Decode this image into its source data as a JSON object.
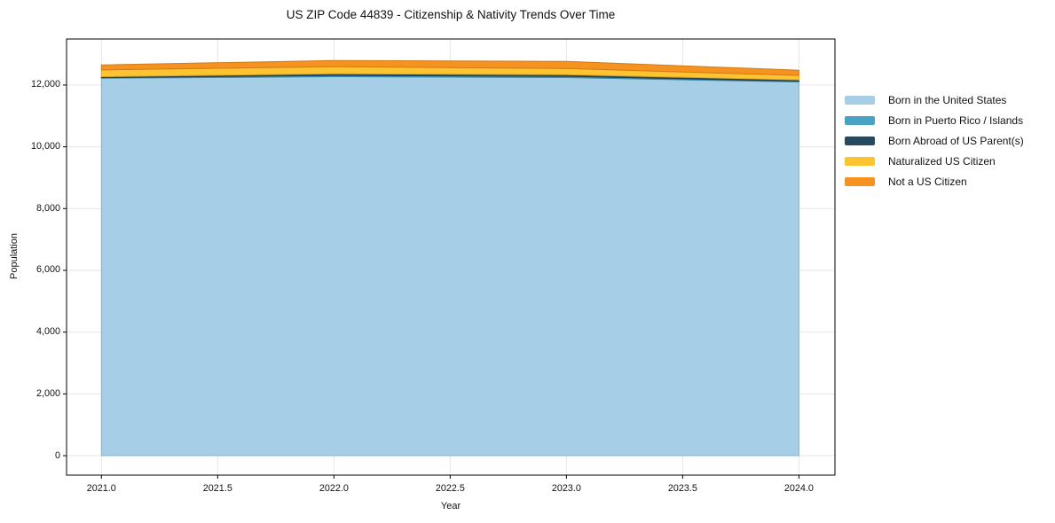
{
  "title": "US ZIP Code 44839 - Citizenship & Nativity Trends Over Time",
  "chart_data": {
    "type": "area",
    "stacked": true,
    "title": "US ZIP Code 44839 - Citizenship & Nativity Trends Over Time",
    "xlabel": "Year",
    "ylabel": "Population",
    "x": [
      2021,
      2022,
      2023,
      2024
    ],
    "series": [
      {
        "name": "Born in the United States",
        "color": "#a6cfe7",
        "values": [
          12220,
          12270,
          12240,
          12100
        ]
      },
      {
        "name": "Born in Puerto Rico / Islands",
        "color": "#48a3c4",
        "values": [
          20,
          40,
          40,
          25
        ]
      },
      {
        "name": "Born Abroad of US Parent(s)",
        "color": "#26495e",
        "values": [
          30,
          55,
          55,
          40
        ]
      },
      {
        "name": "Naturalized US Citizen",
        "color": "#fdc330",
        "values": [
          220,
          230,
          200,
          145
        ]
      },
      {
        "name": "Not a US Citizen",
        "color": "#f6921f",
        "values": [
          160,
          200,
          230,
          170
        ]
      }
    ],
    "x_ticks": [
      {
        "value": 2021.0,
        "label": "2021.0"
      },
      {
        "value": 2021.5,
        "label": "2021.5"
      },
      {
        "value": 2022.0,
        "label": "2022.0"
      },
      {
        "value": 2022.5,
        "label": "2022.5"
      },
      {
        "value": 2023.0,
        "label": "2023.0"
      },
      {
        "value": 2023.5,
        "label": "2023.5"
      },
      {
        "value": 2024.0,
        "label": "2024.0"
      }
    ],
    "y_ticks": [
      {
        "value": 0,
        "label": "0"
      },
      {
        "value": 2000,
        "label": "2,000"
      },
      {
        "value": 4000,
        "label": "4,000"
      },
      {
        "value": 6000,
        "label": "6,000"
      },
      {
        "value": 8000,
        "label": "8,000"
      },
      {
        "value": 10000,
        "label": "10,000"
      },
      {
        "value": 12000,
        "label": "12,000"
      }
    ],
    "xlim": [
      2020.85,
      2024.155
    ],
    "ylim": [
      -630,
      13490
    ],
    "grid": true,
    "legend_position": "right",
    "background_color": "#ffffff",
    "grid_color": "#e6e6e6",
    "spine_color": "#000000"
  }
}
